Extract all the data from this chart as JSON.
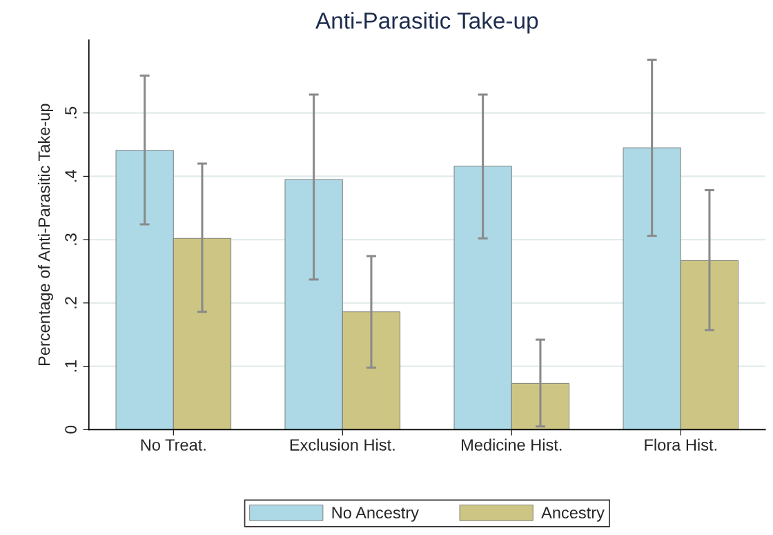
{
  "chart_data": {
    "type": "bar",
    "title": "Anti-Parasitic Take-up",
    "ylabel": "Percentage of Anti-Parasitic Take-up",
    "categories": [
      "No Treat.",
      "Exclusion Hist.",
      "Medicine Hist.",
      "Flora Hist."
    ],
    "series": [
      {
        "name": "No Ancestry",
        "color": "#add8e6",
        "values": [
          0.441,
          0.395,
          0.416,
          0.445
        ],
        "errors": [
          [
            0.324,
            0.559
          ],
          [
            0.237,
            0.529
          ],
          [
            0.302,
            0.529
          ],
          [
            0.306,
            0.584
          ]
        ]
      },
      {
        "name": "Ancestry",
        "color": "#cdc583",
        "values": [
          0.302,
          0.186,
          0.073,
          0.267
        ],
        "errors": [
          [
            0.186,
            0.42
          ],
          [
            0.098,
            0.274
          ],
          [
            0.005,
            0.142
          ],
          [
            0.157,
            0.378
          ]
        ]
      }
    ],
    "ylim": [
      0,
      0.615
    ],
    "yticks": [
      {
        "value": 0,
        "label": "0"
      },
      {
        "value": 0.1,
        "label": ".1"
      },
      {
        "value": 0.2,
        "label": ".2"
      },
      {
        "value": 0.3,
        "label": ".3"
      },
      {
        "value": 0.4,
        "label": ".4"
      },
      {
        "value": 0.5,
        "label": ".5"
      }
    ],
    "grid": "y",
    "legend": "bottom"
  }
}
